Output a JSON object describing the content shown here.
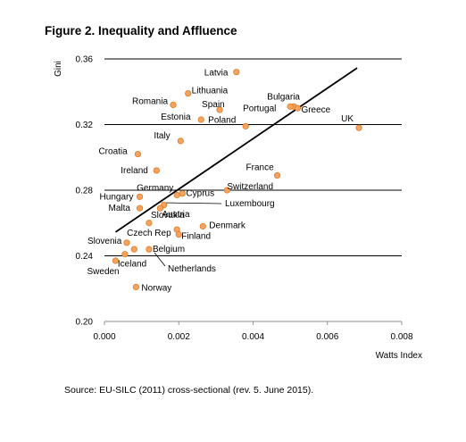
{
  "header": {
    "title": "Figure 2. Inequality and Affluence"
  },
  "footer": {
    "source": "Source: EU-SILC (2011) cross-sectional (rev. 5. June 2015)."
  },
  "chart_data": {
    "type": "scatter",
    "title": "Figure 2. Inequality and Affluence",
    "xlabel": "Watts Index",
    "ylabel": "Gini",
    "xlim": [
      0,
      0.008
    ],
    "ylim": [
      0.2,
      0.36
    ],
    "x_ticks": [
      "0.000",
      "0.002",
      "0.004",
      "0.006",
      "0.008"
    ],
    "y_ticks": [
      "0.20",
      "0.24",
      "0.28",
      "0.32",
      "0.36"
    ],
    "grid": "horizontal",
    "marker_color": "#F4A460",
    "marker_edge": "#E07B20",
    "trend_line": {
      "x": [
        0.0003,
        0.0068
      ],
      "y": [
        0.2545,
        0.3545
      ]
    },
    "points": [
      {
        "name": "Latvia",
        "x": 0.00355,
        "y": 0.352
      },
      {
        "name": "Lithuania",
        "x": 0.00225,
        "y": 0.339
      },
      {
        "name": "Romania",
        "x": 0.00185,
        "y": 0.332
      },
      {
        "name": "Spain",
        "x": 0.0031,
        "y": 0.329
      },
      {
        "name": "Estonia",
        "x": 0.0026,
        "y": 0.323
      },
      {
        "name": "Poland",
        "x": 0.0038,
        "y": 0.319
      },
      {
        "name": "Bulgaria",
        "x": 0.0051,
        "y": 0.331
      },
      {
        "name": "Portugal",
        "x": 0.005,
        "y": 0.331
      },
      {
        "name": "Greece",
        "x": 0.0052,
        "y": 0.33
      },
      {
        "name": "UK",
        "x": 0.00685,
        "y": 0.318
      },
      {
        "name": "Italy",
        "x": 0.00205,
        "y": 0.31
      },
      {
        "name": "Croatia",
        "x": 0.0009,
        "y": 0.302
      },
      {
        "name": "Ireland",
        "x": 0.0014,
        "y": 0.292
      },
      {
        "name": "France",
        "x": 0.00465,
        "y": 0.289
      },
      {
        "name": "Switzerland",
        "x": 0.0033,
        "y": 0.28
      },
      {
        "name": "Germany",
        "x": 0.00195,
        "y": 0.277
      },
      {
        "name": "Cyprus",
        "x": 0.0021,
        "y": 0.278
      },
      {
        "name": "Hungary",
        "x": 0.00095,
        "y": 0.276
      },
      {
        "name": "Luxembourg",
        "x": 0.0016,
        "y": 0.271
      },
      {
        "name": "Austria",
        "x": 0.0015,
        "y": 0.269
      },
      {
        "name": "Malta",
        "x": 0.00095,
        "y": 0.269
      },
      {
        "name": "Slovakia",
        "x": 0.0012,
        "y": 0.26
      },
      {
        "name": "Denmark",
        "x": 0.00265,
        "y": 0.258
      },
      {
        "name": "Czech Rep",
        "x": 0.00195,
        "y": 0.256
      },
      {
        "name": "Finland",
        "x": 0.002,
        "y": 0.253
      },
      {
        "name": "Slovenia",
        "x": 0.0006,
        "y": 0.248
      },
      {
        "name": "Belgium",
        "x": 0.0012,
        "y": 0.244
      },
      {
        "name": "Iceland",
        "x": 0.00055,
        "y": 0.241
      },
      {
        "name": "Netherlands",
        "x": 0.0008,
        "y": 0.244
      },
      {
        "name": "Sweden",
        "x": 0.0003,
        "y": 0.237
      },
      {
        "name": "Norway",
        "x": 0.00085,
        "y": 0.221
      }
    ]
  }
}
